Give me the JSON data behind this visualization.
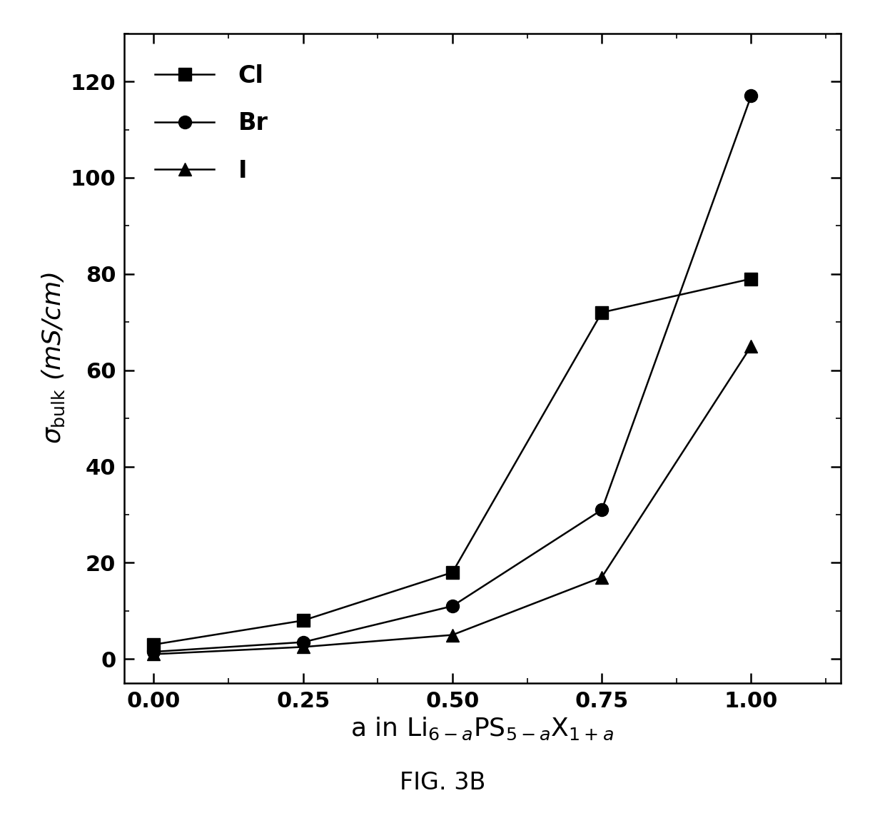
{
  "x_values": [
    0.0,
    0.25,
    0.5,
    0.75,
    1.0
  ],
  "Cl": [
    3.0,
    8.0,
    18.0,
    72.0,
    79.0
  ],
  "Br": [
    1.5,
    3.5,
    11.0,
    31.0,
    117.0
  ],
  "I": [
    1.0,
    2.5,
    5.0,
    17.0,
    65.0
  ],
  "ylim": [
    -5,
    130
  ],
  "xlim": [
    -0.05,
    1.15
  ],
  "xticks": [
    0.0,
    0.25,
    0.5,
    0.75,
    1.0
  ],
  "yticks": [
    0,
    20,
    40,
    60,
    80,
    100,
    120
  ],
  "legend_labels": [
    "Cl",
    "Br",
    "I"
  ],
  "fig_label": "FIG. 3B",
  "line_color": "#000000",
  "marker_size": 13,
  "line_width": 1.8,
  "legend_fontsize": 24,
  "tick_fontsize": 22,
  "label_fontsize": 26,
  "figlabel_fontsize": 24
}
